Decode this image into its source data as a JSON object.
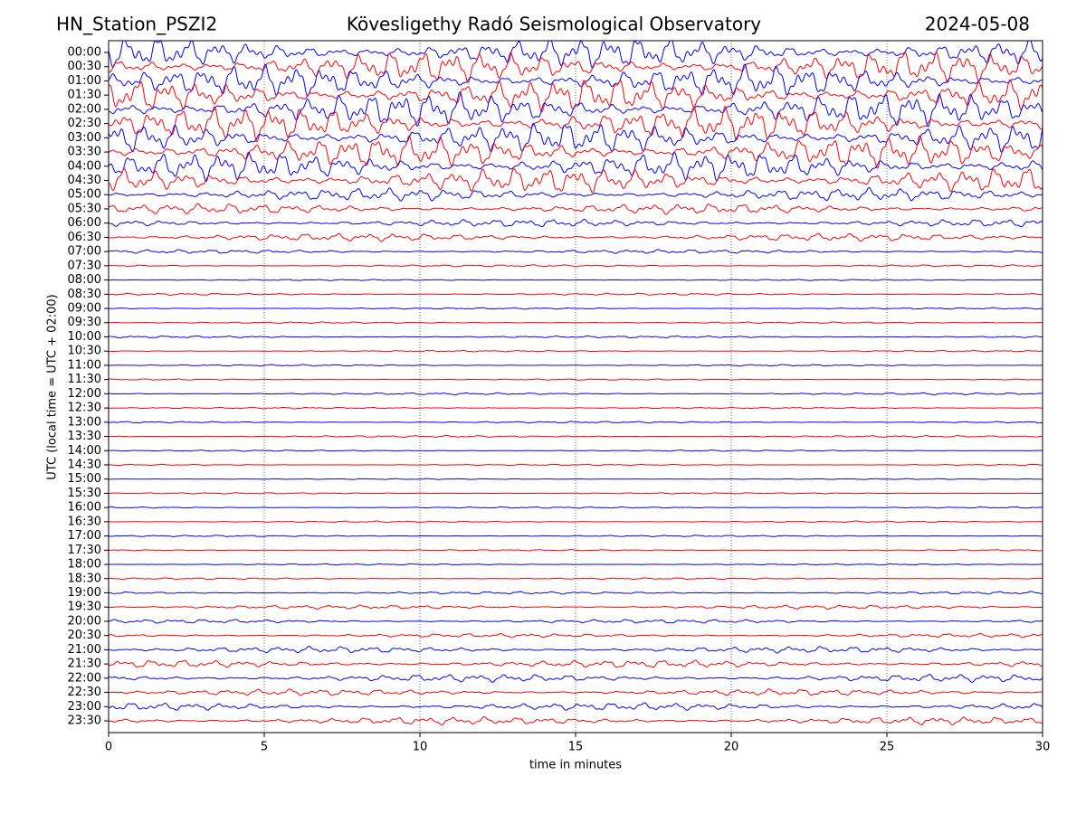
{
  "chart_data": {
    "type": "helicorder",
    "title_left": "HN_Station_PSZI2",
    "title": "Kövesligethy Radó Seismological Observatory",
    "title_right": "2024-05-08",
    "xlabel": "time in minutes",
    "ylabel": "UTC (local time = UTC + 02:00)",
    "categories": [
      "00:00",
      "00:30",
      "01:00",
      "01:30",
      "02:00",
      "02:30",
      "03:00",
      "03:30",
      "04:00",
      "04:30",
      "05:00",
      "05:30",
      "06:00",
      "06:30",
      "07:00",
      "07:30",
      "08:00",
      "08:30",
      "09:00",
      "09:30",
      "10:00",
      "10:30",
      "11:00",
      "11:30",
      "12:00",
      "12:30",
      "13:00",
      "13:30",
      "14:00",
      "14:30",
      "15:00",
      "15:30",
      "16:00",
      "16:30",
      "17:00",
      "17:30",
      "18:00",
      "18:30",
      "19:00",
      "19:30",
      "20:00",
      "20:30",
      "21:00",
      "21:30",
      "22:00",
      "22:30",
      "23:00",
      "23:30"
    ],
    "values": [
      1.2,
      1.2,
      1.2,
      1.3,
      1.3,
      1.3,
      1.2,
      1.2,
      1.1,
      1.0,
      0.5,
      0.4,
      0.3,
      0.3,
      0.15,
      0.08,
      0.05,
      0.08,
      0.06,
      0.06,
      0.08,
      0.05,
      0.06,
      0.05,
      0.08,
      0.06,
      0.07,
      0.07,
      0.05,
      0.05,
      0.04,
      0.05,
      0.06,
      0.06,
      0.06,
      0.05,
      0.05,
      0.06,
      0.1,
      0.15,
      0.15,
      0.15,
      0.25,
      0.3,
      0.3,
      0.25,
      0.3,
      0.3
    ],
    "colors": [
      "#0000ff",
      "#ff0000"
    ],
    "xlim": [
      0,
      30
    ],
    "xticks": [
      0,
      5,
      10,
      15,
      20,
      25,
      30
    ],
    "grid": true
  }
}
